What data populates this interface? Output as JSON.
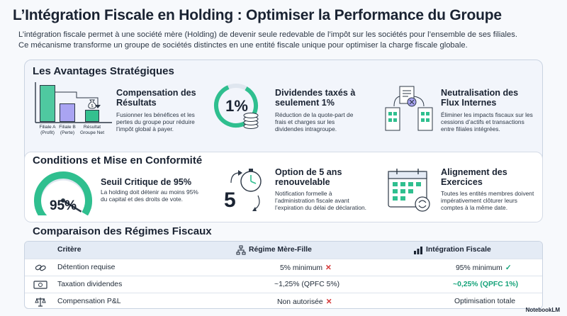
{
  "header": {
    "title": "L’Intégration Fiscale en Holding : Optimiser la Performance du Groupe",
    "subtitle_line1": "L’intégration fiscale permet à une société mère (Holding) de devenir seule redevable de l’impôt sur les sociétés pour l’ensemble de ses filiales.",
    "subtitle_line2": "Ce mécanisme transforme un groupe de sociétés distinctes en une entité fiscale unique pour optimiser la charge fiscale globale."
  },
  "advantages": {
    "title": "Les Avantages Stratégiques",
    "chart": {
      "bar_labels": [
        "Filiale A\n(Profit)",
        "Filiale B\n(Perte)",
        "Résultat\nGroupe Net"
      ],
      "colors": [
        "#4fc9a0",
        "#a9a4f2",
        "#35c08f"
      ]
    },
    "compensation": {
      "title": "Compensation des Résultats",
      "text": "Fusionner les bénéfices et les pertes du groupe pour réduire l’impôt global à payer."
    },
    "dividends": {
      "badge": "1%",
      "title": "Dividendes taxés à seulement 1%",
      "text": "Réduction de la quote-part de frais et charges sur les dividendes intragroupe."
    },
    "flows": {
      "title": "Neutralisation des Flux Internes",
      "text": "Éliminer les impacts fiscaux sur les cessions d’actifs et transactions entre filiales intégrées."
    }
  },
  "conditions": {
    "title": "Conditions et Mise en Conformité",
    "threshold": {
      "gauge_value": "95%",
      "gauge_fraction": 0.95,
      "title": "Seuil Critique de 95%",
      "text": "La holding doit détenir au moins 95% du capital et des droits de vote."
    },
    "option": {
      "number": "5",
      "title": "Option de 5 ans renouvelable",
      "text": "Notification formelle à l’administration fiscale avant l’expiration du délai de déclaration."
    },
    "alignment": {
      "title": "Alignement des Exercices",
      "text": "Toutes les entités membres doivent impérativement clôturer leurs comptes à la même date."
    }
  },
  "comparison": {
    "title": "Comparaison des Régimes Fiscaux",
    "headers": {
      "criterion": "Critère",
      "parent": "Régime Mère-Fille",
      "integration": "Intégration Fiscale"
    },
    "rows": [
      {
        "criterion": "Détention requise",
        "parent": "5% minimum",
        "integration": "95% minimum"
      },
      {
        "criterion": "Taxation dividendes",
        "parent": "~1,25% (QPFC 5%)",
        "integration": "~0,25% (QPFC 1%)"
      },
      {
        "criterion": "Compensation P&L",
        "parent": "Non autorisée",
        "integration": "Optimisation totale"
      }
    ]
  },
  "branding": {
    "logo": "NotebookLM"
  },
  "colors": {
    "accent": "#2fbf8f",
    "dark": "#1a2332",
    "red": "#d63a3a",
    "purple": "#a9a4f2"
  }
}
